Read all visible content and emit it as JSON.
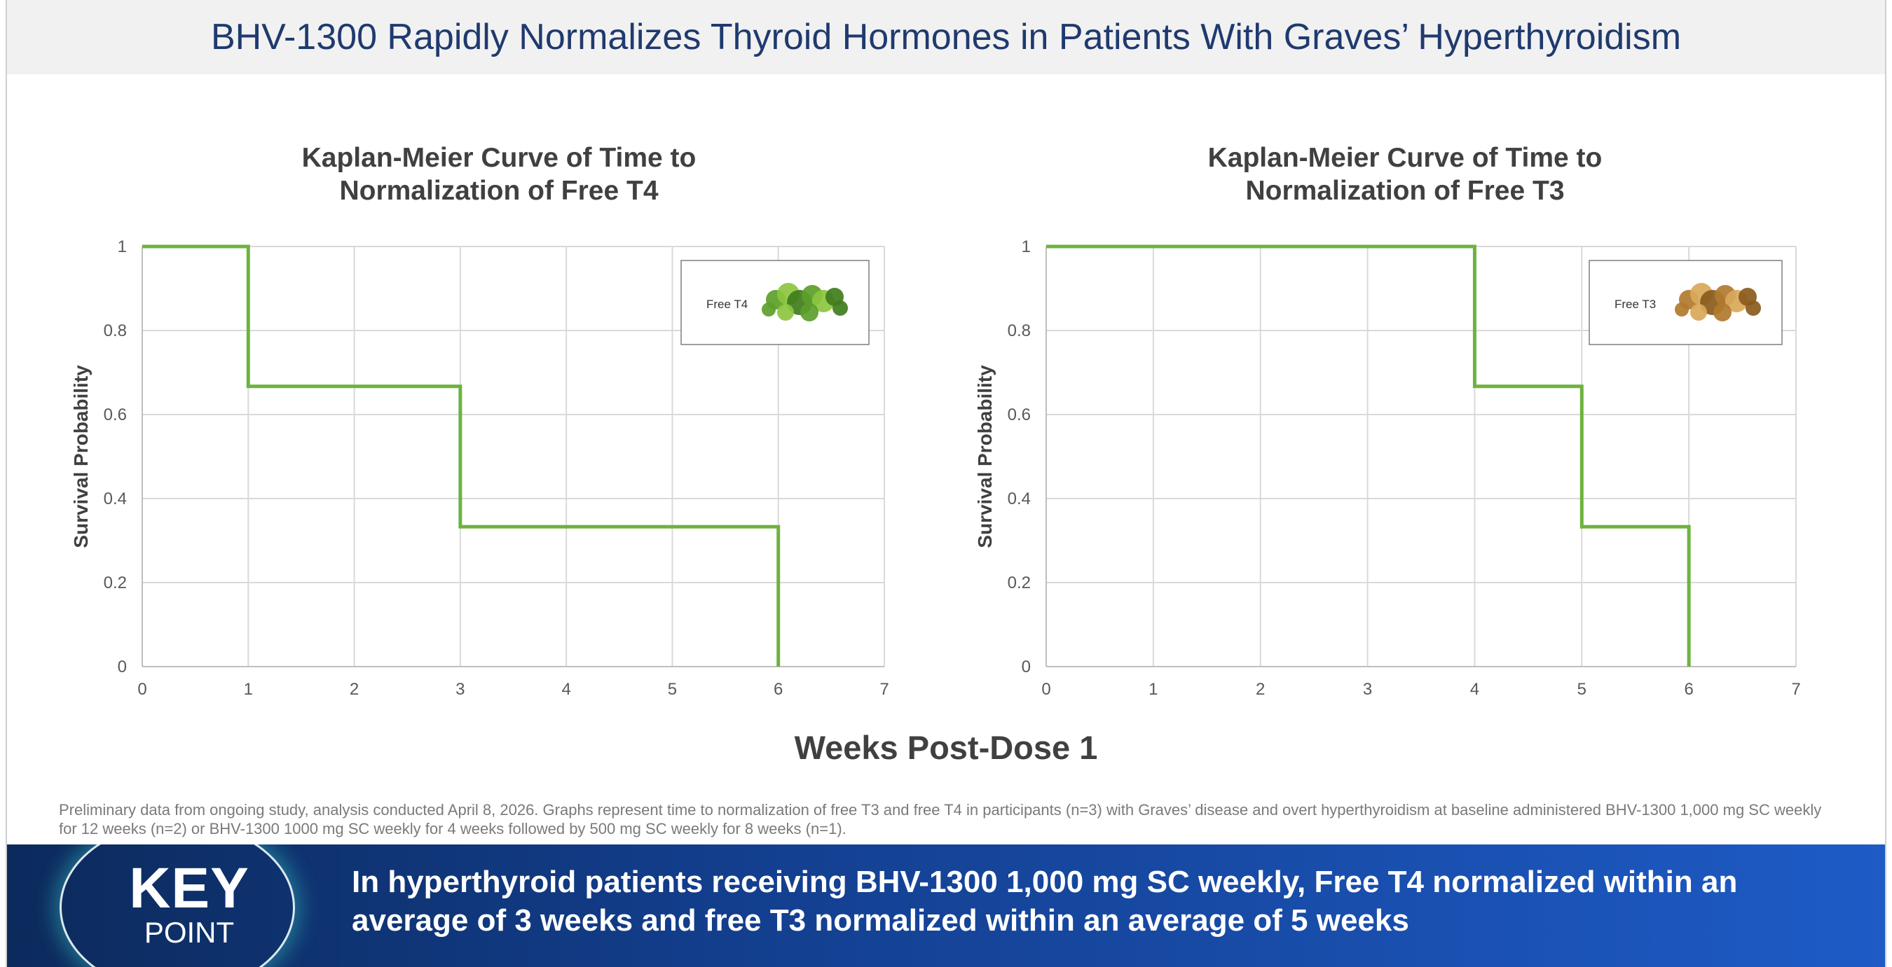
{
  "title": "BHV-1300 Rapidly Normalizes Thyroid Hormones in Patients With Graves’ Hyperthyroidism",
  "shared_xlabel": "Weeks Post-Dose 1",
  "footnote": "Preliminary data from ongoing study, analysis conducted April 8, 2026. Graphs represent time to normalization of free T3 and free T4 in participants (n=3) with Graves’ disease and overt hyperthyroidism at baseline administered BHV-1300 1,000 mg SC weekly for 12 weeks (n=2) or BHV-1300 1000 mg SC weekly for 4 weeks followed by 500 mg SC weekly for 8 weeks (n=1).",
  "key_point": {
    "word": "KEY",
    "sub": "POINT",
    "text": "In hyperthyroid patients receiving BHV-1300 1,000 mg SC weekly, Free T4 normalized within an average of 3 weeks and free T3 normalized within an average of 5 weeks"
  },
  "colors": {
    "line": "#6db33f",
    "title": "#1f3a6e",
    "grid": "#d9d9d9"
  },
  "chart_data": [
    {
      "type": "line",
      "step": true,
      "title_line1": "Kaplan-Meier Curve of Time to",
      "title_line2": "Normalization of Free T4",
      "ylabel": "Survival Probability",
      "xlabel": "Weeks Post-Dose 1",
      "xlim": [
        0,
        7
      ],
      "ylim": [
        0,
        1
      ],
      "x_ticks": [
        "0",
        "1",
        "2",
        "3",
        "4",
        "5",
        "6",
        "7"
      ],
      "y_ticks": [
        "0",
        "0.2",
        "0.4",
        "0.6",
        "0.8",
        "1"
      ],
      "grid": true,
      "x": [
        0,
        1,
        3,
        6
      ],
      "y": [
        1,
        0.667,
        0.333,
        0
      ],
      "inset": {
        "label": "Free T4",
        "position": "top-right",
        "image": "green molecule"
      }
    },
    {
      "type": "line",
      "step": true,
      "title_line1": "Kaplan-Meier Curve of Time to",
      "title_line2": "Normalization of Free T3",
      "ylabel": "Survival Probability",
      "xlabel": "Weeks Post-Dose 1",
      "xlim": [
        0,
        7
      ],
      "ylim": [
        0,
        1
      ],
      "x_ticks": [
        "0",
        "1",
        "2",
        "3",
        "4",
        "5",
        "6",
        "7"
      ],
      "y_ticks": [
        "0",
        "0.2",
        "0.4",
        "0.6",
        "0.8",
        "1"
      ],
      "grid": true,
      "x": [
        0,
        4,
        5,
        6
      ],
      "y": [
        1,
        0.667,
        0.333,
        0
      ],
      "inset": {
        "label": "Free T3",
        "position": "top-right",
        "image": "orange molecule"
      }
    }
  ]
}
